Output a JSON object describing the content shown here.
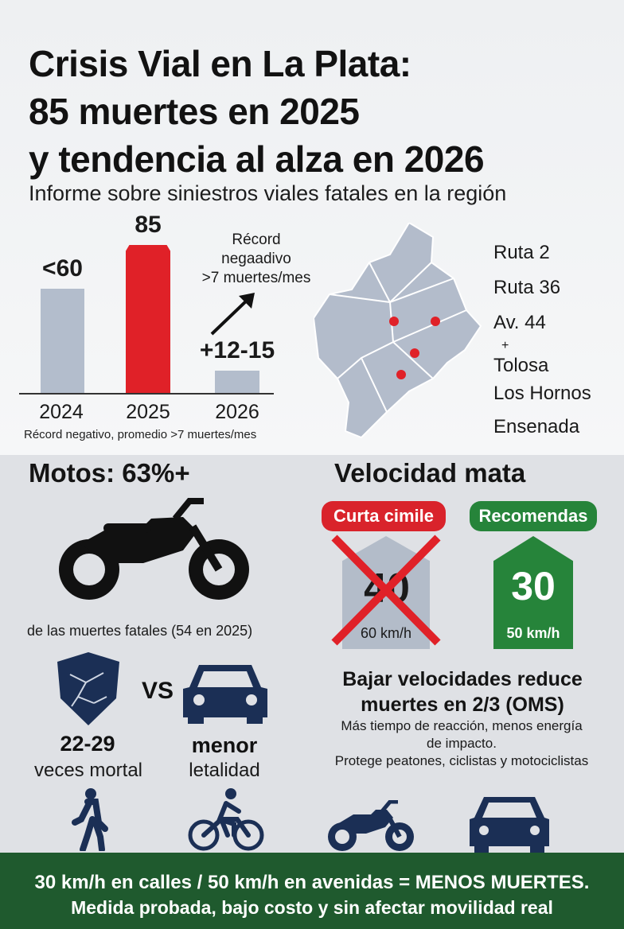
{
  "colors": {
    "red": "#e02128",
    "grey_bar": "#b3bdcc",
    "green": "#26843a",
    "navy": "#1b2f55",
    "footer": "#1f5a2e"
  },
  "header": {
    "title_line1": "Crisis Vial en La Plata:",
    "title_line2": "85 muertes en 2025",
    "title_line3": "y tendencia al alza en 2026",
    "subtitle": "Informe sobre siniestros viales fatales en la región"
  },
  "chart_data": {
    "type": "bar",
    "categories": [
      "2024",
      "2025",
      "2026"
    ],
    "value_labels": [
      "<60",
      "85",
      "+12-15"
    ],
    "values": [
      60,
      85,
      13
    ],
    "note": "Récord negativo, promedio >7 muertes/mes"
  },
  "record_note": {
    "line1": "Récord",
    "line2": "negaadivo",
    "line3": ">7 muertes/mes"
  },
  "map": {
    "roads": [
      "Ruta 2",
      "Ruta 36",
      "Av. 44"
    ],
    "plus": "+",
    "areas": [
      "Tolosa",
      "Los Hornos",
      "Ensenada"
    ],
    "hotspots": 4
  },
  "motos": {
    "heading": "Motos: 63%+",
    "caption": "de las muertes fatales (54 en 2025)",
    "vs": "VS",
    "moto_stat": "22-29",
    "moto_stat_label": "veces mortal",
    "car_stat": "menor",
    "car_stat_label": "letalidad"
  },
  "speed": {
    "heading": "Velocidad mata",
    "current_label": "Curta cimile",
    "current_value": "40",
    "current_unit": "60 km/h",
    "recommended_label": "Recomendas",
    "recommended_value": "30",
    "recommended_unit": "50 km/h",
    "headline_line1": "Bajar velocidades reduce",
    "headline_line2": "muertes en 2/3 (OMS)",
    "body_line1": "Más tiempo de reacción, menos energía",
    "body_line2": "de impacto.",
    "body_line3": "Protege peatones, ciclistas y motociclistas"
  },
  "footer": {
    "line1": "30 km/h en calles / 50 km/h en avenidas = MENOS MUERTES.",
    "line2": "Medida probada, bajo costo y sin afectar movilidad real"
  }
}
